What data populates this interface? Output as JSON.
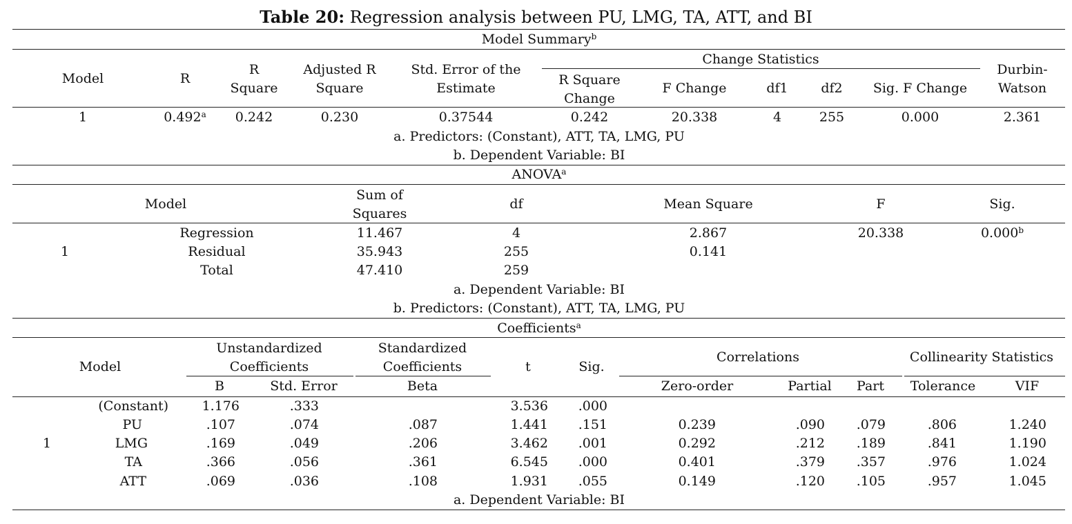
{
  "title": {
    "bold": "Table 20:",
    "rest": " Regression analysis between PU, LMG, TA, ATT, and BI"
  },
  "model_summary": {
    "caption": "Model Summary",
    "caption_sup": "b",
    "headers": {
      "model": "Model",
      "r": "R",
      "r_square_1": "R",
      "r_square_2": "Square",
      "adj_1": "Adjusted R",
      "adj_2": "Square",
      "se_1": "Std. Error of the",
      "se_2": "Estimate",
      "change_stats": "Change Statistics",
      "rsc_1": "R Square",
      "rsc_2": "Change",
      "f_change": "F Change",
      "df1": "df1",
      "df2": "df2",
      "sig_f": "Sig. F Change",
      "dw_1": "Durbin-",
      "dw_2": "Watson"
    },
    "row": {
      "model": "1",
      "r": "0.492",
      "r_sup": "a",
      "r_square": "0.242",
      "adj": "0.230",
      "se": "0.37544",
      "rsc": "0.242",
      "f_change": "20.338",
      "df1": "4",
      "df2": "255",
      "sig_f": "0.000",
      "dw": "2.361"
    },
    "notes": [
      "a. Predictors: (Constant), ATT, TA, LMG, PU",
      "b. Dependent Variable: BI"
    ]
  },
  "anova": {
    "caption": "ANOVA",
    "caption_sup": "a",
    "headers": {
      "model": "Model",
      "ss_1": "Sum of",
      "ss_2": "Squares",
      "df": "df",
      "ms": "Mean Square",
      "f": "F",
      "sig": "Sig."
    },
    "model": "1",
    "rows": [
      {
        "label": "Regression",
        "ss": "11.467",
        "df": "4",
        "ms": "2.867",
        "f": "20.338",
        "sig": "0.000",
        "sig_sup": "b"
      },
      {
        "label": "Residual",
        "ss": "35.943",
        "df": "255",
        "ms": "0.141"
      },
      {
        "label": "Total",
        "ss": "47.410",
        "df": "259"
      }
    ],
    "notes": [
      "a. Dependent Variable: BI",
      "b. Predictors: (Constant), ATT, TA, LMG, PU"
    ]
  },
  "coefficients": {
    "caption": "Coefficients",
    "caption_sup": "a",
    "headers": {
      "model": "Model",
      "unstd_1": "Unstandardized",
      "unstd_2": "Coefficients",
      "std_1": "Standardized",
      "std_2": "Coefficients",
      "t": "t",
      "sig": "Sig.",
      "correlations": "Correlations",
      "collinearity": "Collinearity Statistics",
      "b": "B",
      "std_error": "Std. Error",
      "beta": "Beta",
      "zero_order": "Zero-order",
      "partial": "Partial",
      "part": "Part",
      "tolerance": "Tolerance",
      "vif": "VIF"
    },
    "model": "1",
    "rows": [
      {
        "label": "(Constant)",
        "b": "1.176",
        "se": ".333",
        "beta": "",
        "t": "3.536",
        "sig": ".000",
        "zero": "",
        "partial": "",
        "part": "",
        "tol": "",
        "vif": ""
      },
      {
        "label": "PU",
        "b": ".107",
        "se": ".074",
        "beta": ".087",
        "t": "1.441",
        "sig": ".151",
        "zero": "0.239",
        "partial": ".090",
        "part": ".079",
        "tol": ".806",
        "vif": "1.240"
      },
      {
        "label": "LMG",
        "b": ".169",
        "se": ".049",
        "beta": ".206",
        "t": "3.462",
        "sig": ".001",
        "zero": "0.292",
        "partial": ".212",
        "part": ".189",
        "tol": ".841",
        "vif": "1.190"
      },
      {
        "label": "TA",
        "b": ".366",
        "se": ".056",
        "beta": ".361",
        "t": "6.545",
        "sig": ".000",
        "zero": "0.401",
        "partial": ".379",
        "part": ".357",
        "tol": ".976",
        "vif": "1.024"
      },
      {
        "label": "ATT",
        "b": ".069",
        "se": ".036",
        "beta": ".108",
        "t": "1.931",
        "sig": ".055",
        "zero": "0.149",
        "partial": ".120",
        "part": ".105",
        "tol": ".957",
        "vif": "1.045"
      }
    ],
    "notes": [
      "a. Dependent Variable: BI"
    ]
  }
}
